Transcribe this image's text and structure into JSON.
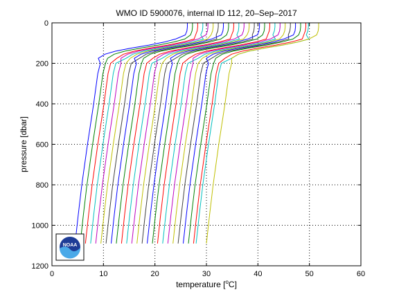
{
  "chart_data": {
    "type": "line",
    "title": "WMO ID 5900076, internal ID 112, 20–Sep–2017",
    "xlabel_prefix": "temperature [",
    "xlabel_degree": "o",
    "xlabel_suffix": "C]",
    "ylabel": "pressure [dbar]",
    "xlim": [
      0,
      60
    ],
    "ylim": [
      1200,
      0
    ],
    "y_reversed": true,
    "x_ticks": [
      0,
      10,
      20,
      30,
      40,
      50,
      60
    ],
    "y_ticks": [
      0,
      200,
      400,
      600,
      800,
      1000,
      1200
    ],
    "grid": true,
    "grid_style": "dotted",
    "logo_text": "NOAA",
    "profile_shape": {
      "pressure": [
        1090,
        950,
        800,
        600,
        400,
        250,
        200,
        175,
        155,
        140,
        125,
        110,
        95,
        80,
        60,
        40,
        20,
        0
      ],
      "temperature": [
        0,
        0.6,
        1.3,
        2.4,
        3.6,
        4.4,
        4.9,
        5.7,
        7.0,
        9.0,
        12.0,
        15.5,
        18.5,
        20.7,
        21.4,
        21.7,
        21.8,
        21.8
      ]
    },
    "series": [
      {
        "color": "#0000ff",
        "bottom_temperature": 4.5
      },
      {
        "color": "#008000",
        "bottom_temperature": 5.5
      },
      {
        "color": "#ff0000",
        "bottom_temperature": 6.5
      },
      {
        "color": "#00bfbf",
        "bottom_temperature": 7.5
      },
      {
        "color": "#bf00bf",
        "bottom_temperature": 8.5
      },
      {
        "color": "#bfbf00",
        "bottom_temperature": 9.5
      },
      {
        "color": "#404040",
        "bottom_temperature": 10.5
      },
      {
        "color": "#0000ff",
        "bottom_temperature": 11.5
      },
      {
        "color": "#008000",
        "bottom_temperature": 12.5
      },
      {
        "color": "#ff0000",
        "bottom_temperature": 13.5
      },
      {
        "color": "#00bfbf",
        "bottom_temperature": 14.5
      },
      {
        "color": "#bf00bf",
        "bottom_temperature": 15.5
      },
      {
        "color": "#bfbf00",
        "bottom_temperature": 16.5
      },
      {
        "color": "#404040",
        "bottom_temperature": 17.5
      },
      {
        "color": "#0000ff",
        "bottom_temperature": 18.5
      },
      {
        "color": "#008000",
        "bottom_temperature": 19.5
      },
      {
        "color": "#ff0000",
        "bottom_temperature": 20.5
      },
      {
        "color": "#00bfbf",
        "bottom_temperature": 21.5
      },
      {
        "color": "#bf00bf",
        "bottom_temperature": 22.5
      },
      {
        "color": "#bfbf00",
        "bottom_temperature": 23.5
      },
      {
        "color": "#404040",
        "bottom_temperature": 24.5
      },
      {
        "color": "#0000ff",
        "bottom_temperature": 25.5
      },
      {
        "color": "#008000",
        "bottom_temperature": 26.5
      },
      {
        "color": "#ff0000",
        "bottom_temperature": 27.5
      },
      {
        "color": "#00bfbf",
        "bottom_temperature": 28.0
      },
      {
        "color": "#bfbf00",
        "bottom_temperature": 30.0
      }
    ]
  }
}
